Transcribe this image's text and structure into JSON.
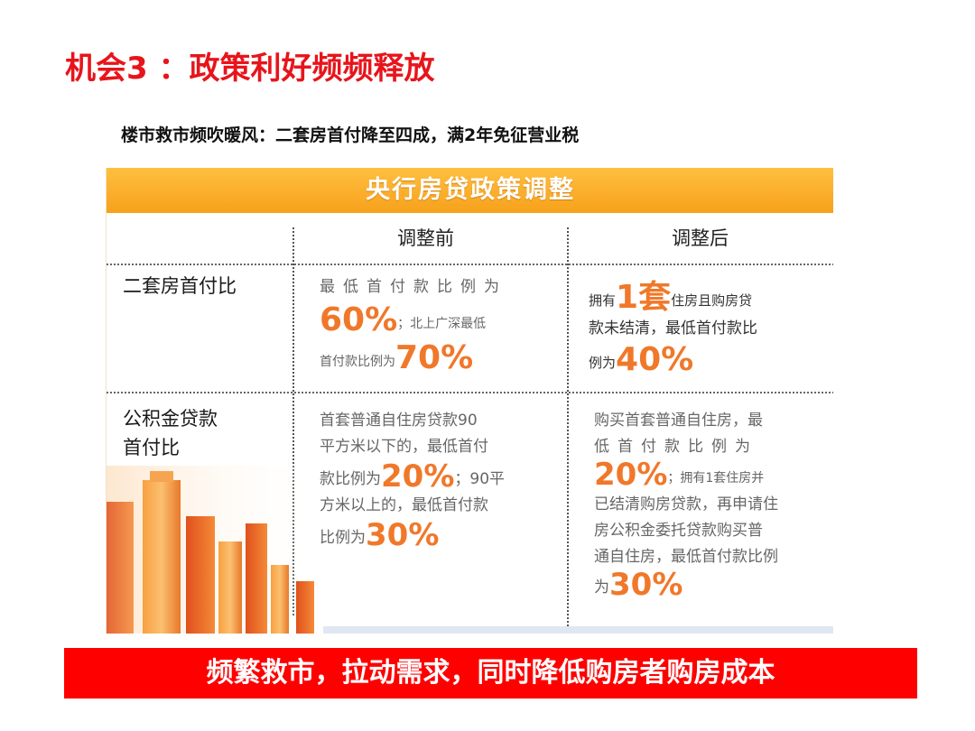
{
  "slide": {
    "title": "机会3 ：政策利好频频释放",
    "subtitle": "楼市救市频吹暖风：二套房首付降至四成，满2年免征营业税",
    "banner": "频繁救市，拉动需求，同时降低购房者购房成本"
  },
  "figure": {
    "header": "央行房贷政策调整",
    "columns": [
      "调整前",
      "调整后"
    ],
    "rows": [
      {
        "label": "二套房首付比",
        "before": {
          "line1": "最低首付款比例为",
          "pct1": "60%",
          "line2": "；北上广深最低",
          "line3": "首付款比例为",
          "pct2": "70%"
        },
        "after": {
          "pre": "拥有",
          "big": "1套",
          "line1": "住房且购房贷",
          "line2": "款未结清，最低首付款比",
          "line3": "例为",
          "pct": "40%"
        }
      },
      {
        "label_line1": "公积金贷款",
        "label_line2": "首付比",
        "before": {
          "line1": "首套普通自住房贷款90",
          "line2": "平方米以下的，最低首付",
          "line3": "款比例为",
          "pct1": "20%",
          "line3b": "；90平",
          "line4": "方米以上的，最低首付款",
          "line5": "比例为",
          "pct2": "30%"
        },
        "after": {
          "line1": "购买首套普通自住房，最",
          "line2": "低首付款比例为",
          "pct1": "20%",
          "line3": "；拥有1套住房并",
          "line4": "已结清购房贷款，再申请住",
          "line5": "房公积金委托贷款购买普",
          "line6": "通自住房，最低首付款比例",
          "line7": "为",
          "pct2": "30%"
        }
      }
    ]
  },
  "colors": {
    "title_red": "#e8141b",
    "banner_red": "#ff0000",
    "header_orange": "#f7a11c",
    "percent_orange": "#f0782a"
  }
}
